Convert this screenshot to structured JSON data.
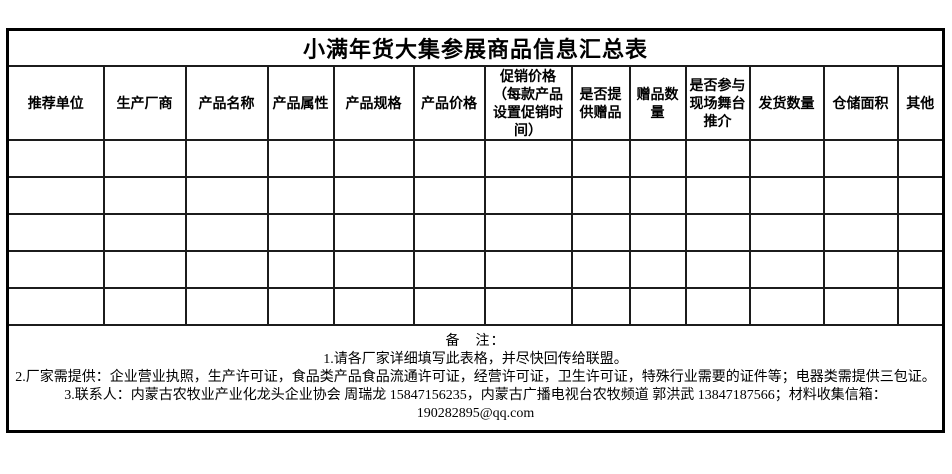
{
  "table": {
    "title": "小满年货大集参展商品信息汇总表",
    "columns": [
      "推荐单位",
      "生产厂商",
      "产品名称",
      "产品属性",
      "产品规格",
      "产品价格",
      "促销价格\n（每款产品设置促销时间）",
      "是否提供赠品",
      "赠品数量",
      "是否参与现场舞台推介",
      "发货数量",
      "仓储面积",
      "其他"
    ],
    "empty_row_count": 5,
    "notes": {
      "label": "备　注：",
      "lines": [
        "1.请各厂家详细填写此表格，并尽快回传给联盟。",
        "2.厂家需提供：企业营业执照，生产许可证，食品类产品食品流通许可证，经营许可证，卫生许可证，特殊行业需要的证件等；电器类需提供三包证。",
        "3.联系人：内蒙古农牧业产业化龙头企业协会 周瑞龙 15847156235，内蒙古广播电视台农牧频道 郭洪武 13847187566；材料收集信箱：",
        "190282895@qq.com"
      ]
    }
  },
  "colors": {
    "background": "#ffffff",
    "text": "#000000",
    "outer_border": "#000000",
    "grid_border": "#1c1c1c"
  }
}
